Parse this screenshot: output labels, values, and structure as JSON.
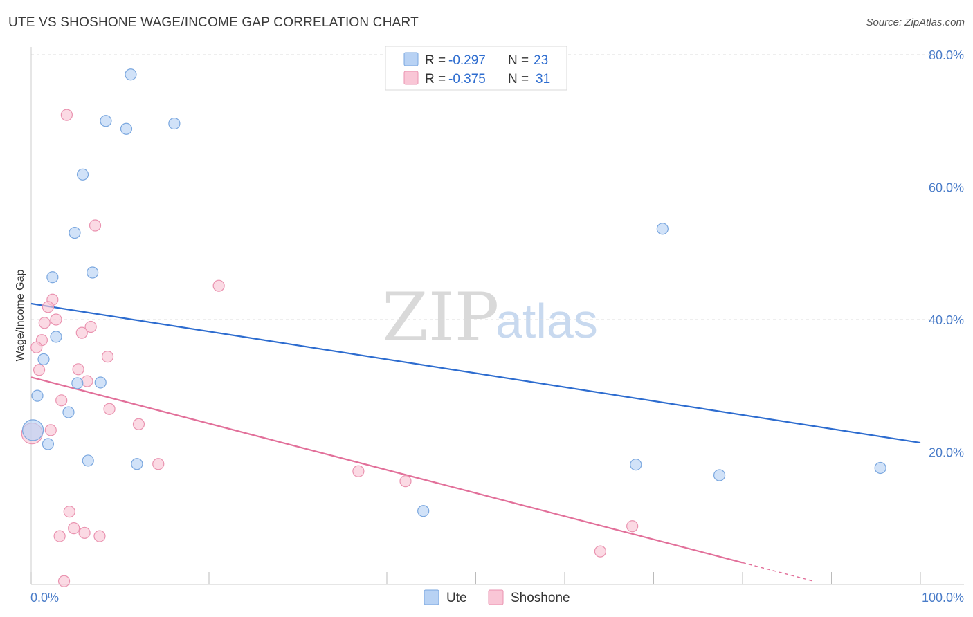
{
  "title": "UTE VS SHOSHONE WAGE/INCOME GAP CORRELATION CHART",
  "source": "Source: ZipAtlas.com",
  "watermark": {
    "part1": "ZIP",
    "part2": "atlas"
  },
  "legend_box": {
    "rows": [
      {
        "r_label": "R =",
        "r_value": "-0.297",
        "n_label": "N =",
        "n_value": "23"
      },
      {
        "r_label": "R =",
        "r_value": "-0.375",
        "n_label": "N =",
        "n_value": "31"
      }
    ]
  },
  "colors": {
    "ute_fill": "#b8d2f4",
    "ute_stroke": "#7aa7df",
    "ute_line": "#2d6ccf",
    "shoshone_fill": "#f9c6d6",
    "shoshone_stroke": "#ea93b0",
    "shoshone_line": "#e2709a",
    "grid": "#dcdcdc",
    "axis_text": "#4a7cc8"
  },
  "chart_data": {
    "type": "scatter",
    "title": "UTE VS SHOSHONE WAGE/INCOME GAP CORRELATION CHART",
    "xlabel": "",
    "ylabel": "Wage/Income Gap",
    "xlim": [
      0,
      100
    ],
    "ylim": [
      0,
      82
    ],
    "x_tick_labels": [
      "0.0%",
      "100.0%"
    ],
    "y_ticks": [
      20,
      40,
      60,
      80
    ],
    "y_tick_labels": [
      "20.0%",
      "40.0%",
      "60.0%",
      "80.0%"
    ],
    "legend": [
      "Ute",
      "Shoshone"
    ],
    "series": [
      {
        "name": "Ute",
        "points": [
          {
            "x": 11.2,
            "y": 77.0
          },
          {
            "x": 8.4,
            "y": 70.0
          },
          {
            "x": 10.7,
            "y": 68.8
          },
          {
            "x": 16.1,
            "y": 69.6
          },
          {
            "x": 5.8,
            "y": 61.9
          },
          {
            "x": 4.9,
            "y": 53.1
          },
          {
            "x": 6.9,
            "y": 47.1
          },
          {
            "x": 2.4,
            "y": 46.4
          },
          {
            "x": 2.8,
            "y": 37.4
          },
          {
            "x": 1.4,
            "y": 34.0
          },
          {
            "x": 5.2,
            "y": 30.4
          },
          {
            "x": 7.8,
            "y": 30.5
          },
          {
            "x": 0.7,
            "y": 28.5
          },
          {
            "x": 4.2,
            "y": 26.0
          },
          {
            "x": 0.2,
            "y": 23.3
          },
          {
            "x": 1.9,
            "y": 21.2
          },
          {
            "x": 6.4,
            "y": 18.7
          },
          {
            "x": 11.9,
            "y": 18.2
          },
          {
            "x": 44.1,
            "y": 11.1
          },
          {
            "x": 68.0,
            "y": 18.1
          },
          {
            "x": 77.4,
            "y": 16.5
          },
          {
            "x": 71.0,
            "y": 53.7
          },
          {
            "x": 95.5,
            "y": 17.6
          }
        ],
        "trend": {
          "x0": 0,
          "y0": 42.4,
          "x1": 100,
          "y1": 21.4
        }
      },
      {
        "name": "Shoshone",
        "points": [
          {
            "x": 4.0,
            "y": 70.9
          },
          {
            "x": 7.2,
            "y": 54.2
          },
          {
            "x": 21.1,
            "y": 45.1
          },
          {
            "x": 2.4,
            "y": 43.0
          },
          {
            "x": 1.9,
            "y": 41.9
          },
          {
            "x": 2.8,
            "y": 40.0
          },
          {
            "x": 1.5,
            "y": 39.5
          },
          {
            "x": 6.7,
            "y": 38.9
          },
          {
            "x": 5.7,
            "y": 38.0
          },
          {
            "x": 1.2,
            "y": 36.9
          },
          {
            "x": 0.6,
            "y": 35.8
          },
          {
            "x": 8.6,
            "y": 34.4
          },
          {
            "x": 0.9,
            "y": 32.4
          },
          {
            "x": 5.3,
            "y": 32.5
          },
          {
            "x": 6.3,
            "y": 30.7
          },
          {
            "x": 3.4,
            "y": 27.8
          },
          {
            "x": 8.8,
            "y": 26.5
          },
          {
            "x": 12.1,
            "y": 24.2
          },
          {
            "x": 2.2,
            "y": 23.3
          },
          {
            "x": 0.1,
            "y": 22.8
          },
          {
            "x": 14.3,
            "y": 18.2
          },
          {
            "x": 36.8,
            "y": 17.1
          },
          {
            "x": 42.1,
            "y": 15.6
          },
          {
            "x": 4.3,
            "y": 11.0
          },
          {
            "x": 4.8,
            "y": 8.5
          },
          {
            "x": 3.2,
            "y": 7.3
          },
          {
            "x": 6.0,
            "y": 7.8
          },
          {
            "x": 7.7,
            "y": 7.3
          },
          {
            "x": 67.6,
            "y": 8.8
          },
          {
            "x": 64.0,
            "y": 5.0
          },
          {
            "x": 3.7,
            "y": 0.5
          }
        ],
        "trend": {
          "x0": 0,
          "y0": 31.3,
          "x1": 80,
          "y1": 3.3
        },
        "trend_dashed_to": {
          "x": 88,
          "y": 0.5
        }
      }
    ]
  }
}
